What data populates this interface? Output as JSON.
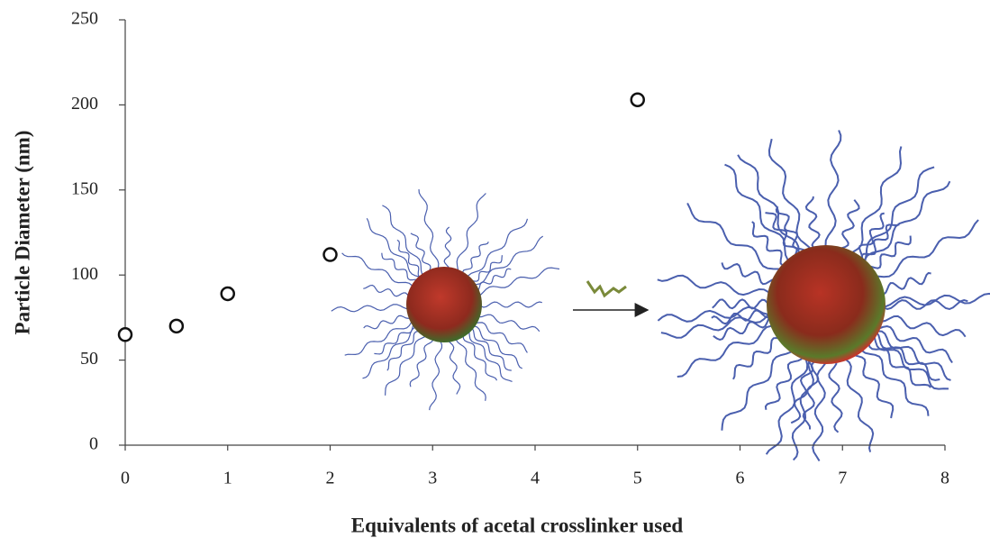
{
  "chart_data": {
    "type": "scatter",
    "x_label": "Equivalents of acetal crosslinker used",
    "y_label": "Particle Diameter (nm)",
    "series": [
      {
        "x": [
          0,
          0.5,
          1,
          2,
          5
        ],
        "values": [
          65,
          70,
          89,
          112,
          203
        ],
        "color": "#111111"
      }
    ],
    "xlim": [
      0,
      8
    ],
    "xticks": [
      0,
      1,
      2,
      3,
      4,
      5,
      6,
      7,
      8
    ],
    "ylim": [
      0,
      250
    ],
    "yticks": [
      0,
      50,
      100,
      150,
      200,
      250
    ]
  }
}
